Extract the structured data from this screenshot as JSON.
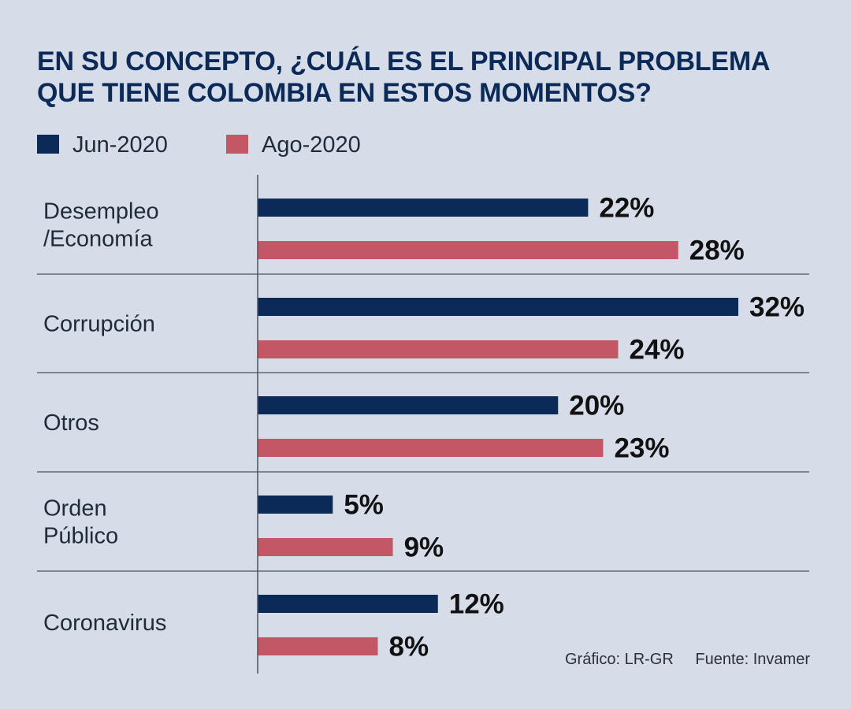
{
  "title_line1": "EN SU CONCEPTO, ¿CUÁL ES EL PRINCIPAL PROBLEMA",
  "title_line2": "QUE TIENE COLOMBIA EN ESTOS MOMENTOS?",
  "legend": [
    {
      "label": "Jun-2020",
      "color": "#0b2a57"
    },
    {
      "label": "Ago-2020",
      "color": "#c45766"
    }
  ],
  "chart_data": {
    "type": "bar",
    "orientation": "horizontal",
    "title": "EN SU CONCEPTO, ¿CUÁL ES EL PRINCIPAL PROBLEMA QUE TIENE COLOMBIA EN ESTOS MOMENTOS?",
    "categories": [
      [
        "Desempleo",
        "/Economía"
      ],
      [
        "Corrupción"
      ],
      [
        "Otros"
      ],
      [
        "Orden",
        "Público"
      ],
      [
        "Coronavirus"
      ]
    ],
    "series": [
      {
        "name": "Jun-2020",
        "values": [
          22,
          32,
          20,
          5,
          12
        ],
        "color": "#0b2a57"
      },
      {
        "name": "Ago-2020",
        "values": [
          28,
          24,
          23,
          9,
          8
        ],
        "color": "#c45766"
      }
    ],
    "value_suffix": "%",
    "xlim": [
      0,
      32
    ],
    "grid": false,
    "legend_position": "top-left"
  },
  "credits": {
    "grafico": "Gráfico: LR-GR",
    "fuente": "Fuente: Invamer"
  }
}
